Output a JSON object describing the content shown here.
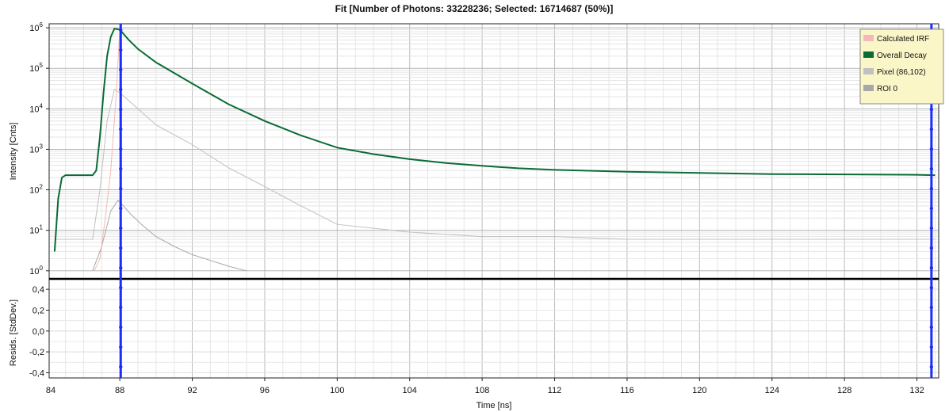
{
  "chart_data": {
    "type": "line",
    "title": "Fit [Number of Photons: 33228236; Selected: 16714687 (50%)]",
    "xlabel": "Time [ns]",
    "xlim": [
      84.1,
      133.2
    ],
    "x_ticks": [
      88,
      92,
      96,
      100,
      104,
      108,
      112,
      116,
      120,
      124,
      128,
      132
    ],
    "x_first_tick_label": "84",
    "main_panel": {
      "ylabel": "Intensity [Cnts]",
      "yscale": "log",
      "ylim_exp": [
        -0.2,
        6.1
      ],
      "y_ticks_exp": [
        0,
        1,
        2,
        3,
        4,
        5,
        6
      ],
      "grid": true
    },
    "resid_panel": {
      "ylabel": "Resids. [StdDev.]",
      "ylim": [
        -0.45,
        0.5
      ],
      "y_ticks": [
        "0,4",
        "0,2",
        "0,0",
        "-0,2",
        "-0,4"
      ],
      "y_tick_values": [
        0.4,
        0.2,
        0.0,
        -0.2,
        -0.4
      ],
      "grid": true
    },
    "cursors_x": [
      88.05,
      132.8
    ],
    "legend": {
      "placement": "top-right",
      "entries": [
        {
          "name": "Calculated IRF",
          "color": "#f4b8b8"
        },
        {
          "name": "Overall Decay",
          "color": "#0a6b35"
        },
        {
          "name": "Pixel (86,102)",
          "color": "#c0c0c0"
        },
        {
          "name": "ROI 0",
          "color": "#a8a8a8"
        }
      ]
    },
    "series": [
      {
        "name": "Overall Decay",
        "color": "#0a6b35",
        "x": [
          84.4,
          84.6,
          84.8,
          85.0,
          86.5,
          86.7,
          86.9,
          87.1,
          87.3,
          87.5,
          87.7,
          88.0,
          88.5,
          89.0,
          90.0,
          92.0,
          94.0,
          96.0,
          98.0,
          100.0,
          102.0,
          104.0,
          106.0,
          108.0,
          110.0,
          112.0,
          116.0,
          120.0,
          124.0,
          128.0,
          132.0,
          133.0
        ],
        "y": [
          3,
          60,
          200,
          230,
          230,
          300,
          2000,
          25000,
          200000,
          600000,
          950000,
          900000,
          500000,
          300000,
          140000,
          42000,
          13000,
          5000,
          2200,
          1100,
          760,
          570,
          460,
          390,
          340,
          310,
          280,
          260,
          245,
          240,
          235,
          230
        ]
      },
      {
        "name": "Pixel (86,102)",
        "color": "#c0c0c0",
        "x": [
          84.5,
          86.5,
          86.9,
          87.3,
          87.7,
          88.0,
          89.0,
          90.0,
          92.0,
          94.0,
          96.0,
          98.0,
          100.0,
          104.0,
          108.0,
          112.0,
          116.0,
          120.0,
          124.0,
          128.0,
          132.0,
          133.0
        ],
        "y": [
          6,
          6,
          100,
          5000,
          30000,
          25000,
          10000,
          4000,
          1300,
          350,
          120,
          40,
          14,
          9,
          7,
          7,
          6,
          6,
          6,
          6,
          6,
          6
        ]
      },
      {
        "name": "ROI 0",
        "color": "#a8a8a8",
        "x": [
          86.5,
          87.0,
          87.5,
          87.9,
          88.2,
          88.6,
          89.2,
          90.0,
          91.0,
          92.0,
          93.0,
          94.0,
          95.0
        ],
        "y": [
          1,
          4,
          30,
          55,
          40,
          25,
          14,
          7,
          4,
          2.5,
          1.8,
          1.3,
          1
        ]
      },
      {
        "name": "Calculated IRF",
        "color": "#f4b8b8",
        "x": [
          86.6,
          86.9,
          87.2,
          87.5,
          87.8,
          88.0,
          88.1
        ],
        "y": [
          1,
          2,
          20,
          300,
          20000,
          1000000,
          1000
        ]
      }
    ]
  }
}
